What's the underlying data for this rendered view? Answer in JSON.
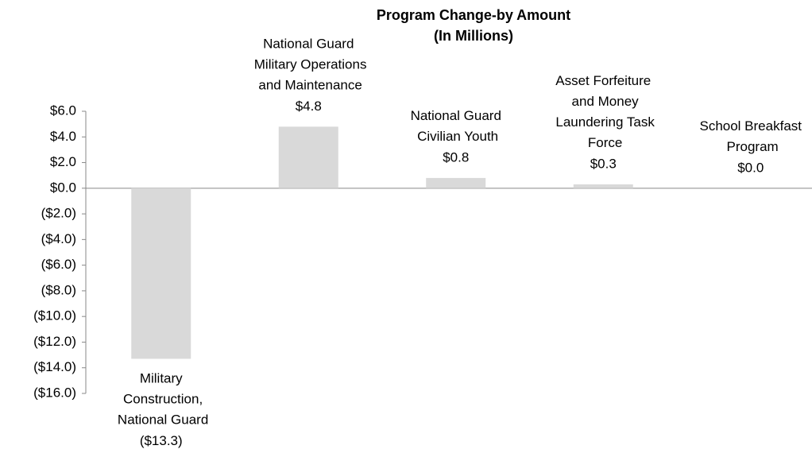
{
  "chart_data": {
    "type": "bar",
    "title": "Program Change-by Amount",
    "subtitle": "(In Millions)",
    "categories": [
      "Military Construction, National Guard",
      "National Guard Military Operations and Maintenance",
      "National Guard Civilian Youth",
      "Asset Forfeiture and Money Laundering Task Force",
      "School Breakfast Program"
    ],
    "values": [
      -13.3,
      4.8,
      0.8,
      0.3,
      0.0
    ],
    "value_labels": [
      "($13.3)",
      "$4.8",
      "$0.8",
      "$0.3",
      "$0.0"
    ],
    "color": "#d9d9d9",
    "ylim": [
      -16,
      6
    ],
    "yticks": [
      {
        "value": 6,
        "label": "$6.0"
      },
      {
        "value": 4,
        "label": "$4.0"
      },
      {
        "value": 2,
        "label": "$2.0"
      },
      {
        "value": 0,
        "label": "$0.0"
      },
      {
        "value": -2,
        "label": "($2.0)"
      },
      {
        "value": -4,
        "label": "($4.0)"
      },
      {
        "value": -6,
        "label": "($6.0)"
      },
      {
        "value": -8,
        "label": "($8.0)"
      },
      {
        "value": -10,
        "label": "($10.0)"
      },
      {
        "value": -12,
        "label": "($12.0)"
      },
      {
        "value": -14,
        "label": "($14.0)"
      },
      {
        "value": -16,
        "label": "($16.0)"
      }
    ],
    "grid": false
  }
}
